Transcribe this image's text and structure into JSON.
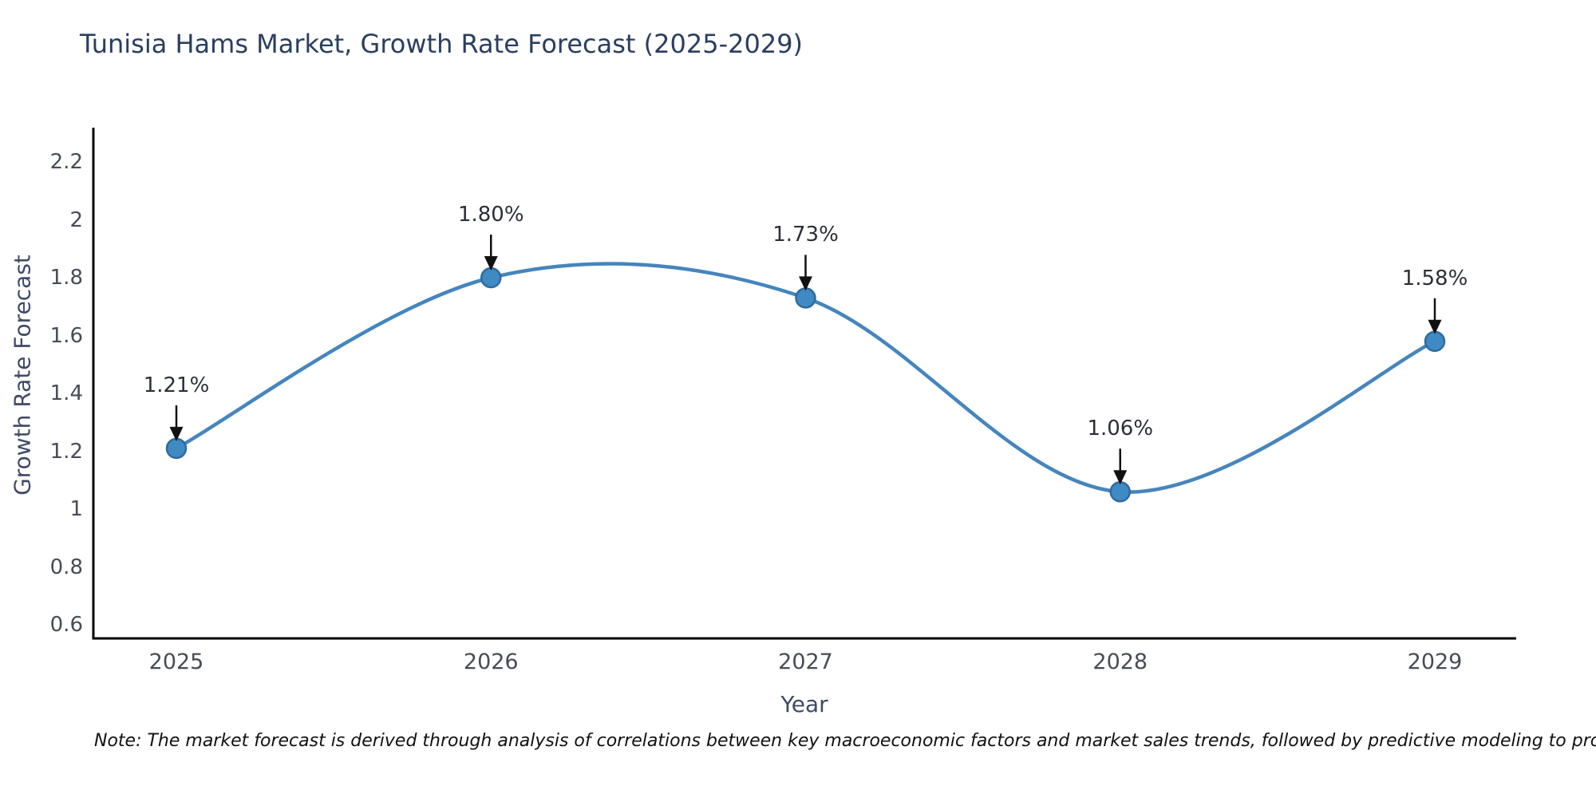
{
  "chart_data": {
    "type": "line",
    "title": "Tunisia Hams Market, Growth Rate Forecast (2025-2029)",
    "xlabel": "Year",
    "ylabel": "Growth Rate Forecast",
    "x": [
      2025,
      2026,
      2027,
      2028,
      2029
    ],
    "series": [
      {
        "name": "Growth Rate Forecast",
        "values": [
          1.21,
          1.8,
          1.73,
          1.06,
          1.58
        ]
      }
    ],
    "point_labels": [
      "1.21%",
      "1.80%",
      "1.73%",
      "1.06%",
      "1.58%"
    ],
    "xtick_labels": [
      "2025",
      "2026",
      "2027",
      "2028",
      "2029"
    ],
    "yticks": [
      0.6,
      0.8,
      1.0,
      1.2,
      1.4,
      1.6,
      1.8,
      2.0,
      2.2
    ],
    "ytick_labels": [
      "0.6",
      "0.8",
      "1",
      "1.2",
      "1.4",
      "1.6",
      "1.8",
      "2",
      "2.2"
    ],
    "ylim": [
      0.55,
      2.32
    ],
    "xlim": [
      2024.74,
      2029.26
    ],
    "grid": false,
    "legend": "none",
    "line_style": "smooth-spline",
    "marker": "circle",
    "annotation_arrows": true,
    "colors": {
      "line": "#4685bd",
      "marker_fill": "#3f8ac2",
      "marker_edge": "#2f6a9e",
      "arrow": "#111111",
      "annotation_text": "#2b2f36",
      "axis_line": "#000000",
      "title": "#2a3f5f",
      "axis_title": "#3e4a66",
      "tick": "#474c55"
    }
  },
  "note": {
    "text": "Note: The market forecast is derived through analysis of correlations between key macroeconomic factors and market sales trends, followed by predictive modeling to project future sales"
  }
}
